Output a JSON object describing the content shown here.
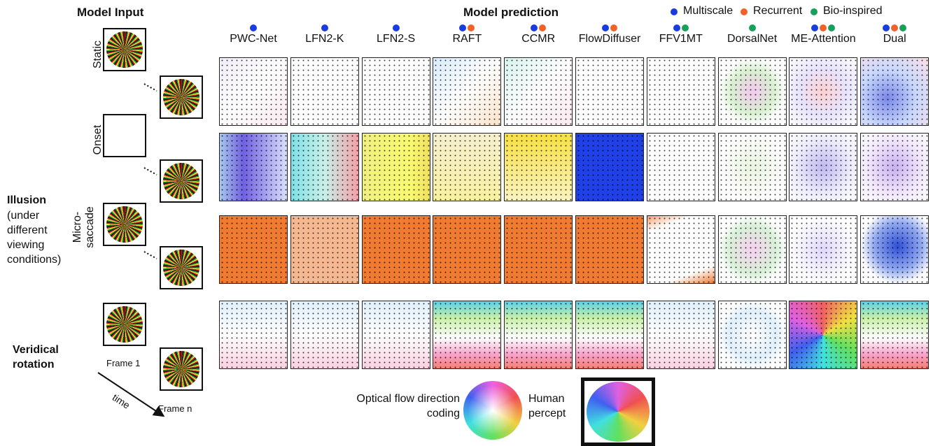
{
  "header": {
    "input_title": "Model Input",
    "prediction_title": "Model prediction"
  },
  "legend": [
    {
      "label": "Multiscale",
      "color": "#1a3be0"
    },
    {
      "label": "Recurrent",
      "color": "#f0622a"
    },
    {
      "label": "Bio-inspired",
      "color": "#16a05a"
    }
  ],
  "models": [
    {
      "name": "PWC-Net",
      "tags": [
        0
      ]
    },
    {
      "name": "LFN2-K",
      "tags": [
        0
      ]
    },
    {
      "name": "LFN2-S",
      "tags": [
        0
      ]
    },
    {
      "name": "RAFT",
      "tags": [
        0,
        1
      ]
    },
    {
      "name": "CCMR",
      "tags": [
        0,
        1
      ]
    },
    {
      "name": "FlowDiffuser",
      "tags": [
        0,
        1
      ]
    },
    {
      "name": "FFV1MT",
      "tags": [
        0,
        2
      ]
    },
    {
      "name": "DorsalNet",
      "tags": [
        2
      ]
    },
    {
      "name": "ME-Attention",
      "tags": [
        0,
        1,
        2
      ]
    },
    {
      "name": "Dual",
      "tags": [
        0,
        1,
        2
      ]
    }
  ],
  "rows": [
    {
      "label": [
        "Static"
      ]
    },
    {
      "label": [
        "Onset"
      ]
    },
    {
      "label": [
        "Micro-",
        "saccade"
      ]
    }
  ],
  "illusion": {
    "title": "Illusion",
    "note": "(under different viewing conditions)"
  },
  "veridical": {
    "title": "Veridical rotation",
    "frame_first": "Frame 1",
    "frame_last": "Frame n",
    "time": "time"
  },
  "key": {
    "flow_coding": "Optical flow direction coding",
    "human": "Human percept"
  }
}
